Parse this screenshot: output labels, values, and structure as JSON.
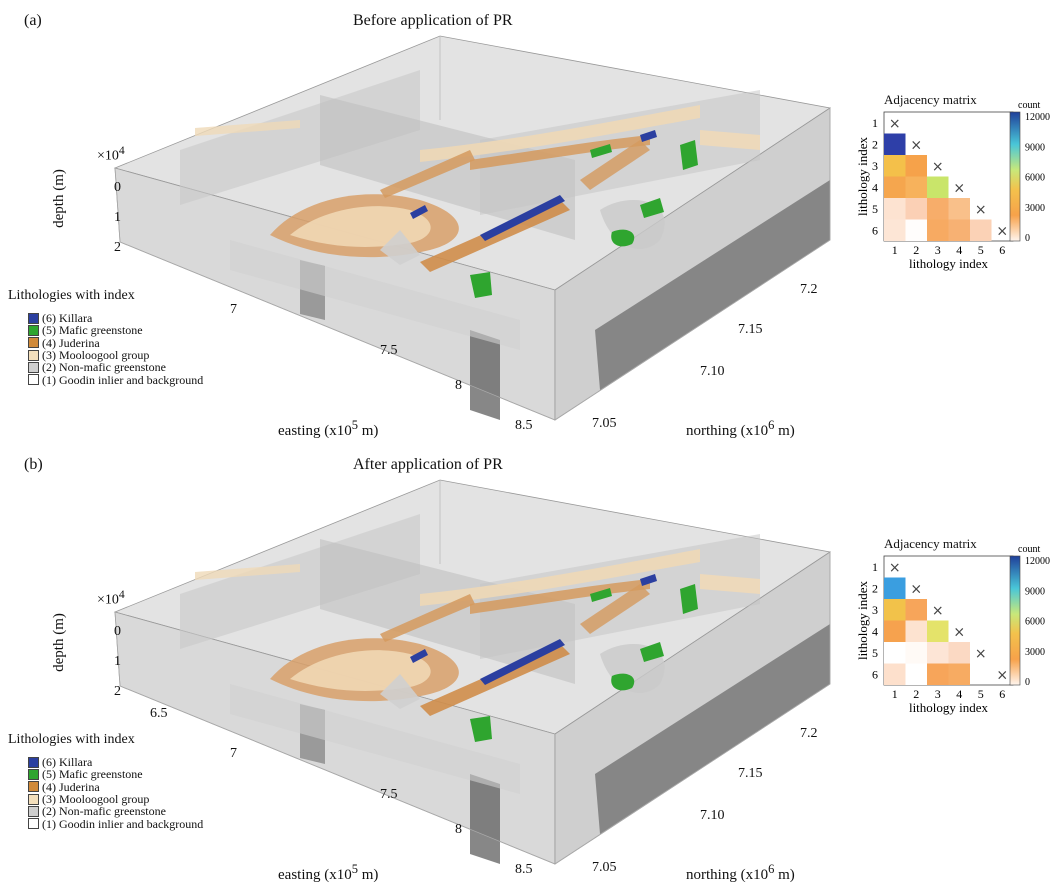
{
  "panels": [
    {
      "label": "(a)",
      "title": "Before application of PR",
      "depth_axis": {
        "label": "depth (m)",
        "multiplier": "×10",
        "exponent": "4",
        "ticks": [
          "0",
          "1",
          "2"
        ]
      },
      "easting_axis": {
        "label": "easting (x10",
        "exponent": "5",
        "unit": " m)",
        "ticks": [
          "7",
          "7.5",
          "8",
          "8.5"
        ]
      },
      "northing_axis": {
        "label": "northing (x10",
        "exponent": "6",
        "unit": " m)",
        "ticks": [
          "7.2",
          "7.15",
          "7.10",
          "7.05"
        ]
      },
      "legend_title": "Lithologies with index",
      "matrix": {
        "title": "Adjacency matrix",
        "x_label": "lithology index",
        "y_label": "lithology index",
        "colorbar_label": "count",
        "colorbar_ticks": [
          "12000",
          "9000",
          "6000",
          "3000",
          "0"
        ],
        "ticks": [
          "1",
          "2",
          "3",
          "4",
          "5",
          "6"
        ],
        "diag_marker": "×",
        "cells": [
          [
            null,
            null,
            null,
            null,
            null,
            null
          ],
          [
            "#2e3fa8",
            null,
            null,
            null,
            null,
            null
          ],
          [
            "#f4c04a",
            "#f6a24a",
            null,
            null,
            null,
            null
          ],
          [
            "#f5a64e",
            "#f7b25c",
            "#c9e56a",
            null,
            null,
            null
          ],
          [
            "#fde3d1",
            "#fbd0b5",
            "#f7ad6a",
            "#f9c08a",
            null,
            null
          ],
          [
            "#fde6d6",
            "#fffdfc",
            "#f7aa62",
            "#f7b173",
            "#fbd2b6",
            null
          ]
        ]
      }
    },
    {
      "label": "(b)",
      "title": "After application of PR",
      "depth_axis": {
        "label": "depth (m)",
        "multiplier": "×10",
        "exponent": "4",
        "ticks": [
          "0",
          "1",
          "2"
        ]
      },
      "easting_axis": {
        "label": "easting (x10",
        "exponent": "5",
        "unit": " m)",
        "ticks": [
          "6.5",
          "7",
          "7.5",
          "8",
          "8.5"
        ]
      },
      "northing_axis": {
        "label": "northing (x10",
        "exponent": "6",
        "unit": " m)",
        "ticks": [
          "7.2",
          "7.15",
          "7.10",
          "7.05"
        ]
      },
      "legend_title": "Lithologies with index",
      "matrix": {
        "title": "Adjacency matrix",
        "x_label": "lithology index",
        "y_label": "lithology index",
        "colorbar_label": "count",
        "colorbar_ticks": [
          "12000",
          "9000",
          "6000",
          "3000",
          "0"
        ],
        "ticks": [
          "1",
          "2",
          "3",
          "4",
          "5",
          "6"
        ],
        "diag_marker": "×",
        "cells": [
          [
            null,
            null,
            null,
            null,
            null,
            null
          ],
          [
            "#3a9ee0",
            null,
            null,
            null,
            null,
            null
          ],
          [
            "#f2c24a",
            "#f7a55a",
            null,
            null,
            null,
            null
          ],
          [
            "#f6a24e",
            "#fde3d0",
            "#e4e36a",
            null,
            null,
            null
          ],
          [
            "#ffffff",
            "#fffaf6",
            "#fde5d6",
            "#fbd9c3",
            null,
            null
          ],
          [
            "#fde0cc",
            "#ffffff",
            "#f7a55a",
            "#f7ab62",
            null,
            null
          ]
        ]
      }
    }
  ],
  "legend_items": [
    {
      "label": "(6) Killara",
      "color": "#2b3fa0"
    },
    {
      "label": "(5) Mafic greenstone",
      "color": "#2fa52f"
    },
    {
      "label": "(4) Juderina",
      "color": "#d08a3a"
    },
    {
      "label": "(3) Mooloogool group",
      "color": "#f3dfbc"
    },
    {
      "label": "(2) Non-mafic greenstone",
      "color": "#cfcfcf"
    },
    {
      "label": "(1) Goodin inlier and background",
      "color": "#ffffff"
    }
  ]
}
